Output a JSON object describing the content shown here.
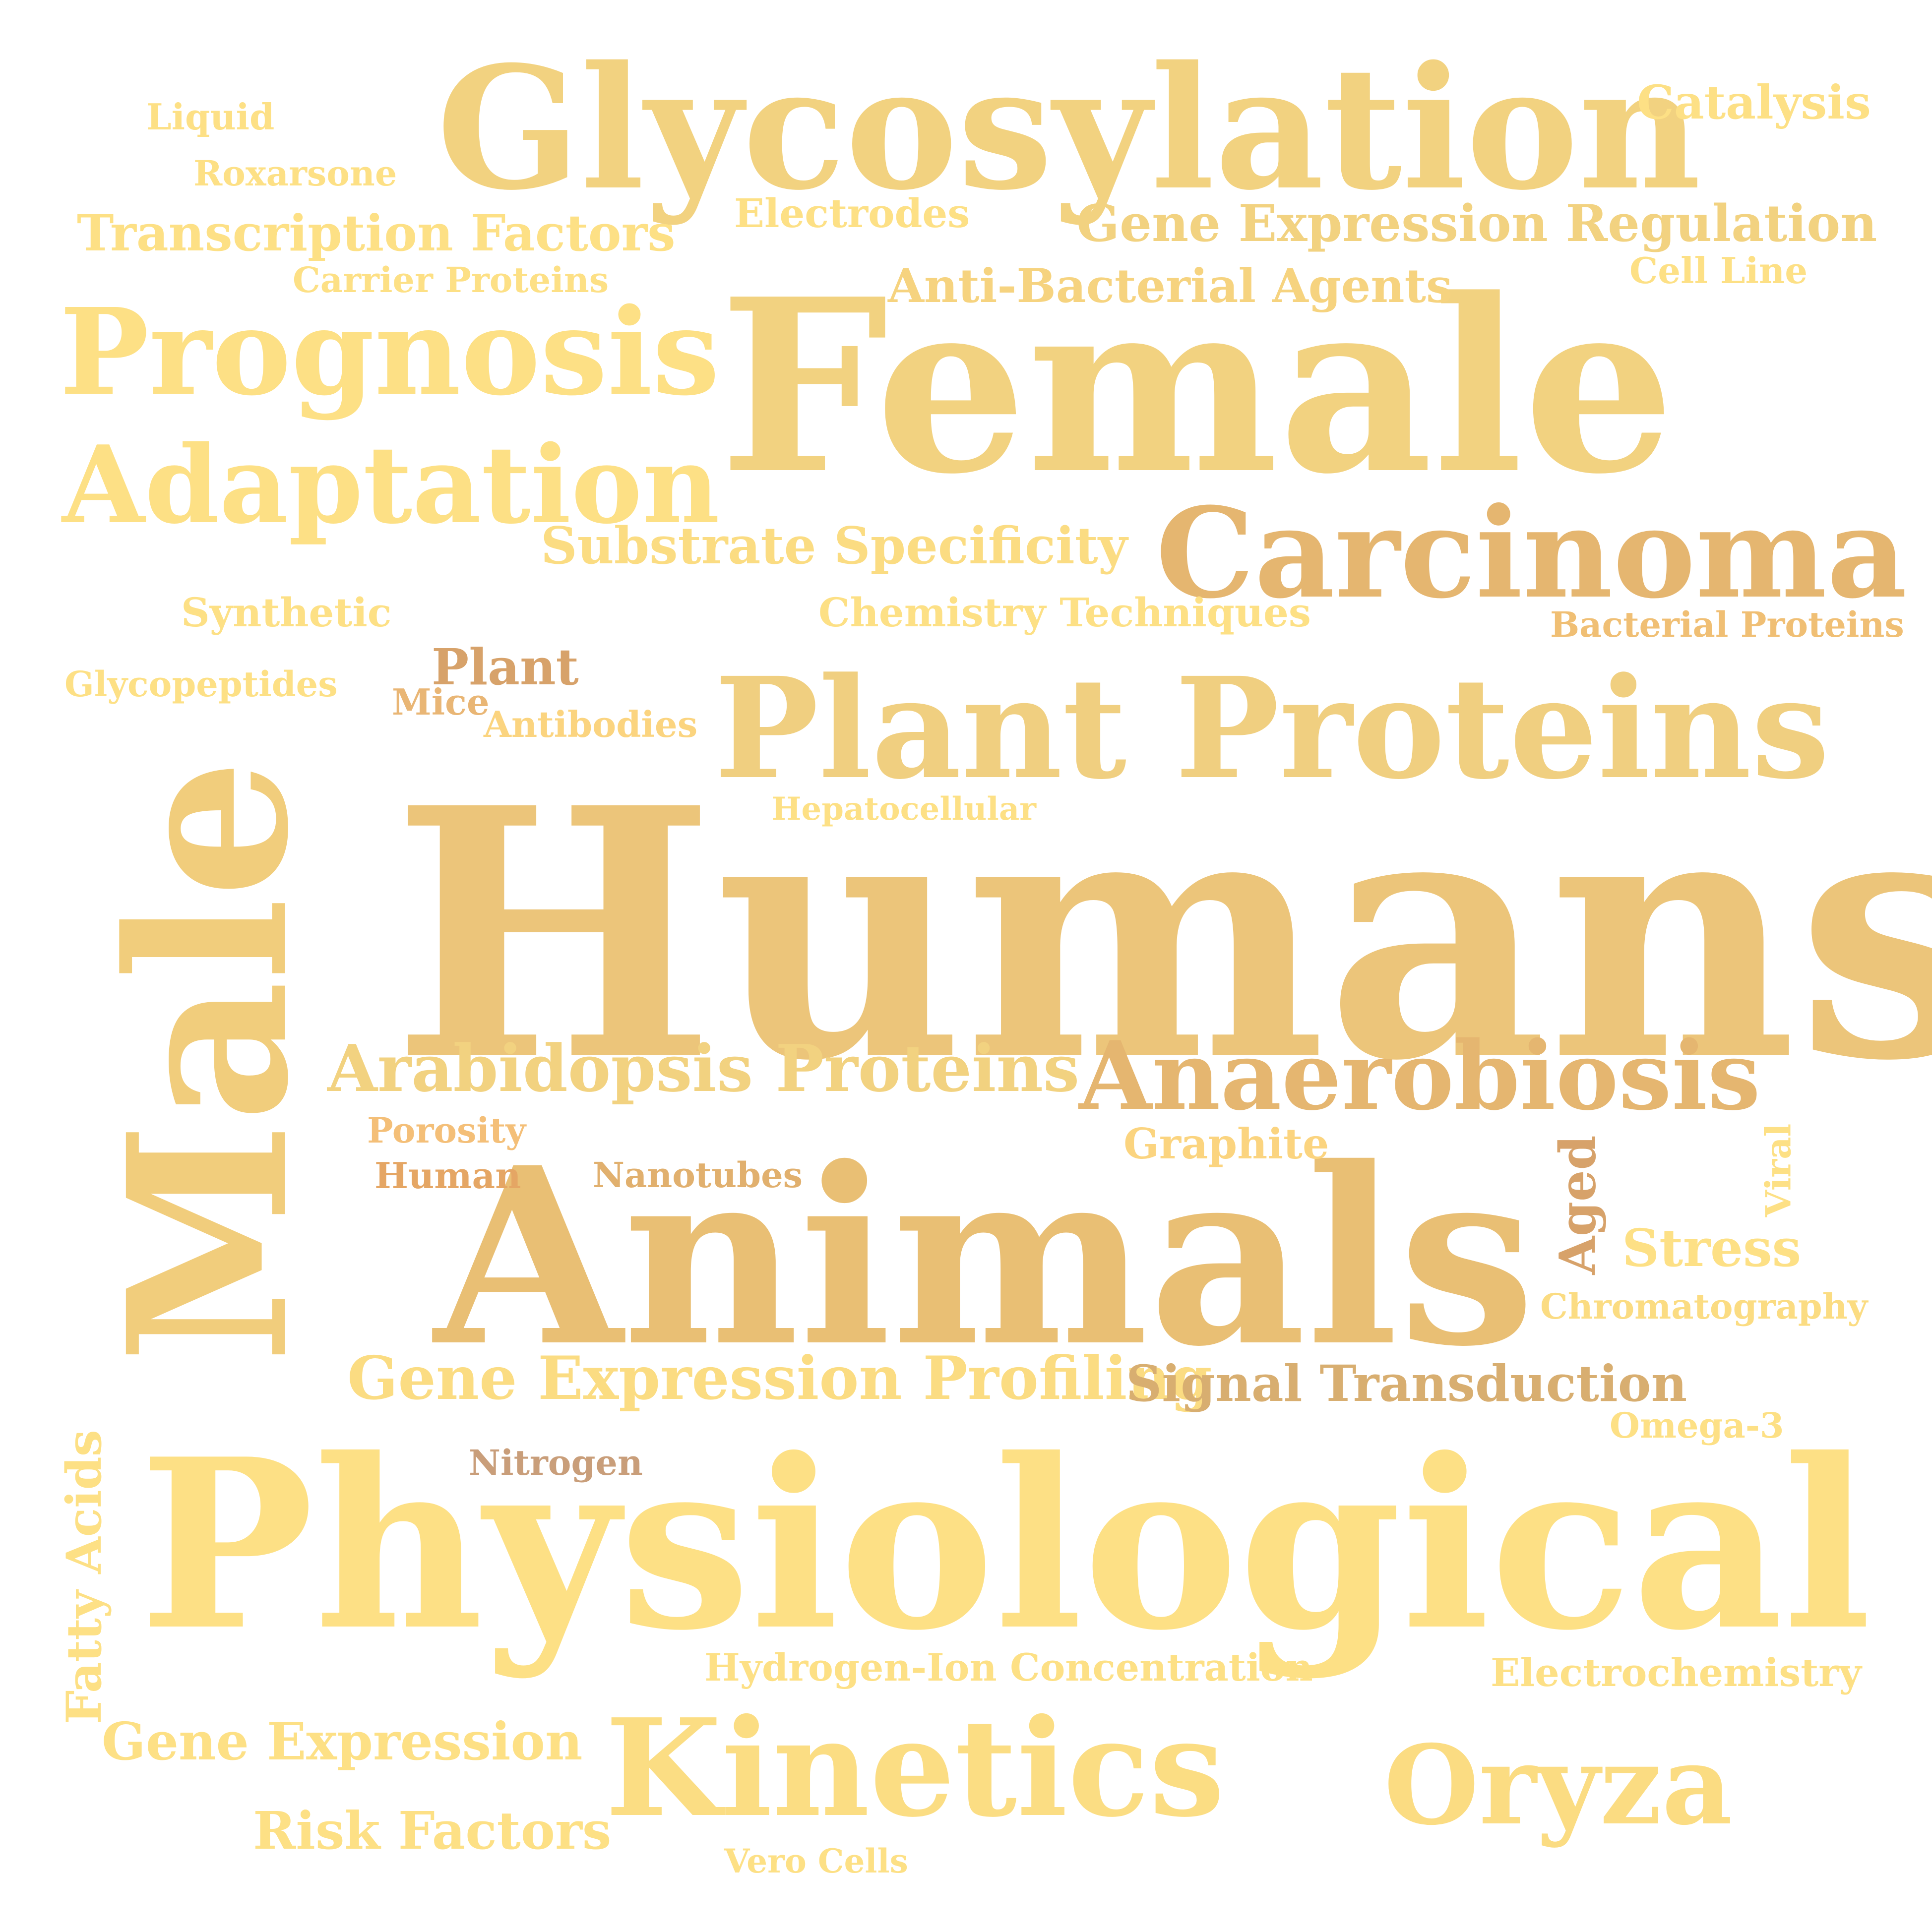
{
  "palette": {
    "background": "#ffffff",
    "gold_light": "#fde085",
    "gold": "#f2d280",
    "gold_mid": "#ecc57a",
    "tan": "#e5b670",
    "brown": "#d7a26a",
    "brown_dark": "#c99e7a"
  },
  "words": [
    {
      "text": "Humans",
      "color": "#ecc57a"
    },
    {
      "text": "Animals",
      "color": "#e9bf74"
    },
    {
      "text": "Physiological",
      "color": "#fde085"
    },
    {
      "text": "Female",
      "color": "#f2d280"
    },
    {
      "text": "Male",
      "color": "#f1cd7c"
    },
    {
      "text": "Glycosylation",
      "color": "#f2d280"
    },
    {
      "text": "Plant Proteins",
      "color": "#f0cf80"
    },
    {
      "text": "Kinetics",
      "color": "#fbdd83"
    },
    {
      "text": "Carcinoma",
      "color": "#e5b670"
    },
    {
      "text": "Prognosis",
      "color": "#fde085"
    },
    {
      "text": "Adaptation",
      "color": "#fde085"
    },
    {
      "text": "Oryza",
      "color": "#fbdc82"
    },
    {
      "text": "Anaerobiosis",
      "color": "#e5b670"
    },
    {
      "text": "Arabidopsis Proteins",
      "color": "#f2d280"
    },
    {
      "text": "Gene Expression Profiling",
      "color": "#fbdc82"
    },
    {
      "text": "Signal Transduction",
      "color": "#d8ae70"
    },
    {
      "text": "Gene Expression Regulation",
      "color": "#f2d280"
    },
    {
      "text": "Substrate Specificity",
      "color": "#fbdc82"
    },
    {
      "text": "Transcription Factors",
      "color": "#fde085"
    },
    {
      "text": "Anti-Bacterial Agents",
      "color": "#f6d37f"
    },
    {
      "text": "Gene Expression",
      "color": "#fde085"
    },
    {
      "text": "Risk Factors",
      "color": "#fde085"
    },
    {
      "text": "Chemistry Techniques",
      "color": "#fde085"
    },
    {
      "text": "Stress",
      "color": "#fde085"
    },
    {
      "text": "Catalysis",
      "color": "#fde085"
    },
    {
      "text": "Electrodes",
      "color": "#fde085"
    },
    {
      "text": "Plant",
      "color": "#d7a26a"
    },
    {
      "text": "Fatty Acids",
      "color": "#fde085"
    },
    {
      "text": "Graphite",
      "color": "#fbd47f"
    },
    {
      "text": "Aged",
      "color": "#d7a26a"
    },
    {
      "text": "Synthetic",
      "color": "#fde085"
    },
    {
      "text": "Hydrogen-Ion Concentration",
      "color": "#fde085"
    },
    {
      "text": "Electrochemistry",
      "color": "#fde085"
    },
    {
      "text": "Chromatography",
      "color": "#fbdc82"
    },
    {
      "text": "Bacterial Proteins",
      "color": "#f0bf74"
    },
    {
      "text": "Liquid",
      "color": "#fde085"
    },
    {
      "text": "Roxarsone",
      "color": "#fde085"
    },
    {
      "text": "Carrier Proteins",
      "color": "#fde085"
    },
    {
      "text": "Cell Line",
      "color": "#fde085"
    },
    {
      "text": "Glycopeptides",
      "color": "#fde085"
    },
    {
      "text": "Mice",
      "color": "#e9b675"
    },
    {
      "text": "Antibodies",
      "color": "#fbd47f"
    },
    {
      "text": "Hepatocellular",
      "color": "#fde085"
    },
    {
      "text": "Porosity",
      "color": "#f4bf78"
    },
    {
      "text": "Human",
      "color": "#e5a664"
    },
    {
      "text": "Nanotubes",
      "color": "#e1b06e"
    },
    {
      "text": "Viral",
      "color": "#fde085"
    },
    {
      "text": "Omega-3",
      "color": "#fde085"
    },
    {
      "text": "Nitrogen",
      "color": "#c99e7a"
    },
    {
      "text": "Vero Cells",
      "color": "#fde085"
    }
  ]
}
